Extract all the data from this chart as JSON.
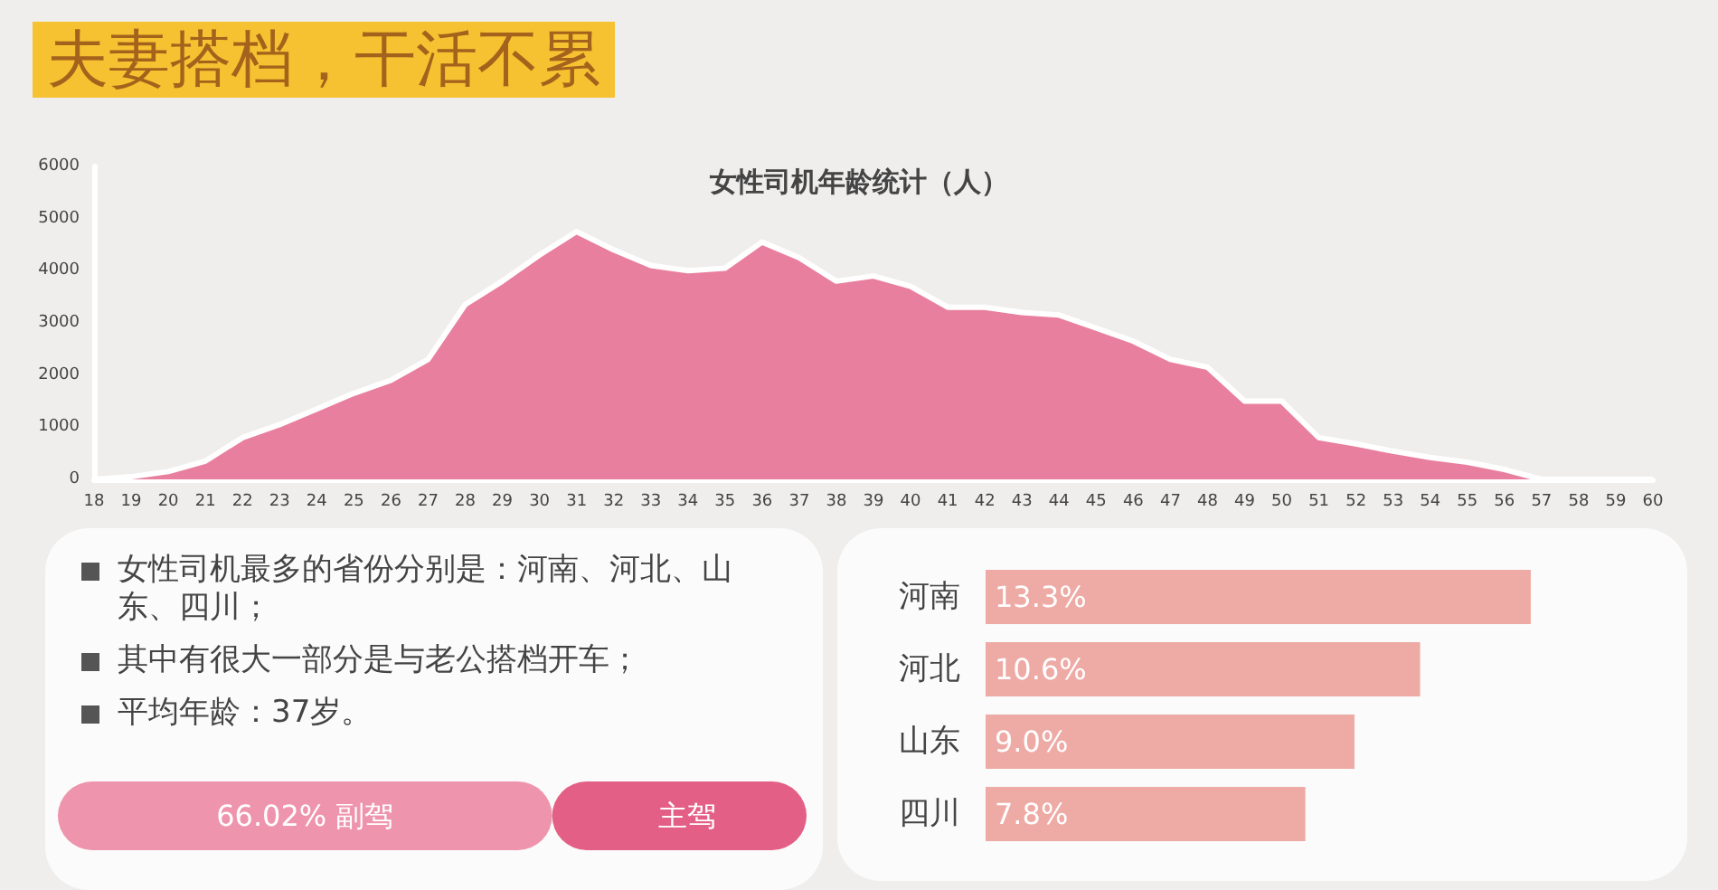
{
  "chart_data": [
    {
      "type": "area",
      "title": "女性司机年龄统计（人）",
      "annotations": [
        "夫妻搭档，干活不累"
      ],
      "categories": [
        "18",
        "19",
        "20",
        "21",
        "22",
        "23",
        "24",
        "25",
        "26",
        "27",
        "28",
        "29",
        "30",
        "31",
        "32",
        "33",
        "34",
        "35",
        "36",
        "37",
        "38",
        "39",
        "40",
        "41",
        "42",
        "43",
        "44",
        "45",
        "46",
        "47",
        "48",
        "49",
        "50",
        "51",
        "52",
        "53",
        "54",
        "55",
        "56",
        "57",
        "58",
        "59",
        "60"
      ],
      "series": [
        {
          "color": "#e97f9f",
          "values": [
            0,
            50,
            150,
            350,
            800,
            1050,
            1350,
            1650,
            1900,
            2300,
            3350,
            3800,
            4300,
            4750,
            4400,
            4100,
            4000,
            4050,
            4550,
            4250,
            3800,
            3900,
            3700,
            3300,
            3300,
            3200,
            3150,
            2900,
            2650,
            2300,
            2150,
            1500,
            1500,
            800,
            680,
            540,
            420,
            330,
            190,
            0,
            0,
            0,
            0
          ]
        }
      ],
      "ylim": [
        0,
        6000
      ],
      "yticks": [
        0,
        1000,
        2000,
        3000,
        4000,
        5000,
        6000
      ],
      "grid": false
    },
    {
      "type": "other",
      "annotations": [
        "女性司机最多的省份分别是：河南、河北、山东、四川；",
        "其中有很大一部分是与老公搭档开车；",
        "平均年龄：37岁。"
      ]
    },
    {
      "type": "bar",
      "orientation": "horizontal",
      "stacked": true,
      "categories": [
        null
      ],
      "xlim": [
        0,
        100
      ],
      "tick_labels": false,
      "series": [
        {
          "color": "#ee94ad",
          "values": [
            66.02
          ],
          "value_labels": [
            "66.02% 副驾"
          ]
        },
        {
          "color": "#e35f86",
          "values": [
            33.98
          ],
          "value_labels": [
            "主驾"
          ]
        }
      ]
    },
    {
      "type": "bar",
      "orientation": "horizontal",
      "categories": [
        "河南",
        "河北",
        "山东",
        "四川"
      ],
      "tick_labels": "y",
      "series": [
        {
          "color": "#eeaaa5",
          "values": [
            13.3,
            10.6,
            9.0,
            7.8
          ],
          "value_labels": [
            "13.3%",
            "10.6%",
            "9.0%",
            "7.8%"
          ]
        }
      ]
    }
  ]
}
